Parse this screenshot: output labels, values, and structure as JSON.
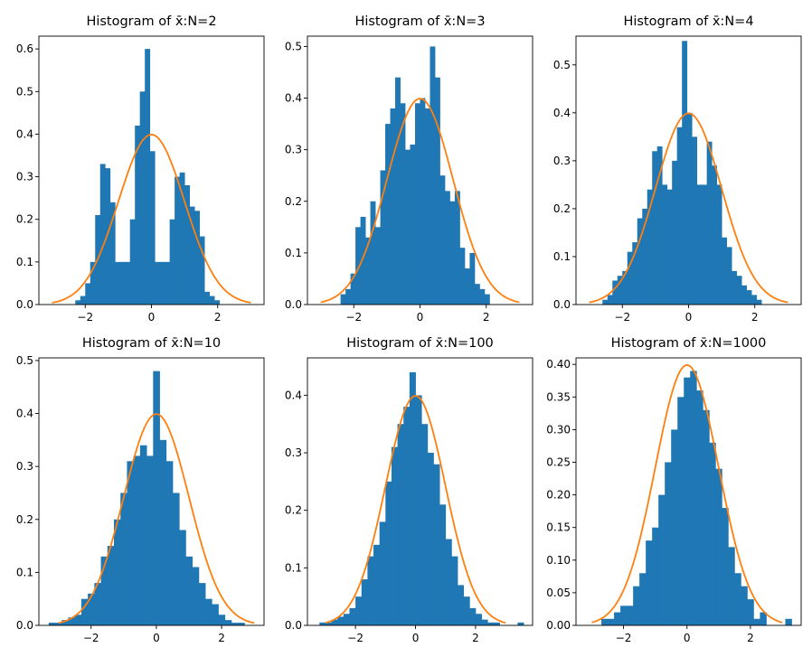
{
  "figure": {
    "background": "#ffffff",
    "bar_color": "#1f77b4",
    "curve_color": "#ff7f0e"
  },
  "chart_data": [
    {
      "type": "bar",
      "title": "Histogram of x̄:N=2",
      "xlabel": "",
      "ylabel": "",
      "xlim": [
        -3.4,
        3.4
      ],
      "ylim": [
        0,
        0.63
      ],
      "xticks": [
        -2,
        0,
        2
      ],
      "xtick_labels": [
        "−2",
        "0",
        "2"
      ],
      "yticks": [
        0,
        0.1,
        0.2,
        0.3,
        0.4,
        0.5,
        0.6
      ],
      "ytick_labels": [
        "0.0",
        "0.1",
        "0.2",
        "0.3",
        "0.4",
        "0.5",
        "0.6"
      ],
      "bin_edges": [
        -2.3,
        -2.15,
        -2.0,
        -1.85,
        -1.7,
        -1.55,
        -1.4,
        -1.25,
        -1.1,
        -0.95,
        -0.8,
        -0.65,
        -0.5,
        -0.35,
        -0.2,
        -0.05,
        0.1,
        0.25,
        0.4,
        0.55,
        0.7,
        0.85,
        1.0,
        1.15,
        1.3,
        1.45,
        1.6,
        1.75,
        1.9,
        2.05,
        2.2
      ],
      "values": [
        0.01,
        0.02,
        0.05,
        0.1,
        0.21,
        0.33,
        0.32,
        0.24,
        0.1,
        0.1,
        0.1,
        0.2,
        0.42,
        0.5,
        0.6,
        0.36,
        0.1,
        0.1,
        0.1,
        0.2,
        0.3,
        0.31,
        0.28,
        0.23,
        0.22,
        0.16,
        0.03,
        0.02,
        0.01,
        0.0
      ],
      "curve": {
        "type": "normal_pdf",
        "mean": 0,
        "std": 1,
        "x_range": [
          -3,
          3
        ]
      }
    },
    {
      "type": "bar",
      "title": "Histogram of x̄:N=3",
      "xlabel": "",
      "ylabel": "",
      "xlim": [
        -3.4,
        3.4
      ],
      "ylim": [
        0,
        0.52
      ],
      "xticks": [
        -2,
        0,
        2
      ],
      "xtick_labels": [
        "−2",
        "0",
        "2"
      ],
      "yticks": [
        0,
        0.1,
        0.2,
        0.3,
        0.4,
        0.5
      ],
      "ytick_labels": [
        "0.0",
        "0.1",
        "0.2",
        "0.3",
        "0.4",
        "0.5"
      ],
      "bin_edges": [
        -2.4,
        -2.25,
        -2.1,
        -1.95,
        -1.8,
        -1.65,
        -1.5,
        -1.35,
        -1.2,
        -1.05,
        -0.9,
        -0.75,
        -0.6,
        -0.45,
        -0.3,
        -0.15,
        0.0,
        0.15,
        0.3,
        0.45,
        0.6,
        0.75,
        0.9,
        1.05,
        1.2,
        1.35,
        1.5,
        1.65,
        1.8,
        1.95,
        2.1,
        2.25,
        2.4
      ],
      "values": [
        0.02,
        0.03,
        0.06,
        0.15,
        0.17,
        0.13,
        0.2,
        0.15,
        0.26,
        0.35,
        0.38,
        0.44,
        0.39,
        0.3,
        0.31,
        0.39,
        0.4,
        0.38,
        0.5,
        0.44,
        0.25,
        0.22,
        0.2,
        0.22,
        0.11,
        0.07,
        0.1,
        0.04,
        0.03,
        0.02,
        0.0,
        0.0
      ],
      "curve": {
        "type": "normal_pdf",
        "mean": 0,
        "std": 1,
        "x_range": [
          -3,
          3
        ]
      }
    },
    {
      "type": "bar",
      "title": "Histogram of x̄:N=4",
      "xlabel": "",
      "ylabel": "",
      "xlim": [
        -3.4,
        3.4
      ],
      "ylim": [
        0,
        0.56
      ],
      "xticks": [
        -2,
        0,
        2
      ],
      "xtick_labels": [
        "−2",
        "0",
        "2"
      ],
      "yticks": [
        0,
        0.1,
        0.2,
        0.3,
        0.4,
        0.5
      ],
      "ytick_labels": [
        "0.0",
        "0.1",
        "0.2",
        "0.3",
        "0.4",
        "0.5"
      ],
      "bin_edges": [
        -2.6,
        -2.45,
        -2.3,
        -2.15,
        -2.0,
        -1.85,
        -1.7,
        -1.55,
        -1.4,
        -1.25,
        -1.1,
        -0.95,
        -0.8,
        -0.65,
        -0.5,
        -0.35,
        -0.2,
        -0.05,
        0.1,
        0.25,
        0.4,
        0.55,
        0.7,
        0.85,
        1.0,
        1.15,
        1.3,
        1.45,
        1.6,
        1.75,
        1.9,
        2.05,
        2.2,
        2.35,
        2.5
      ],
      "values": [
        0.01,
        0.02,
        0.05,
        0.06,
        0.07,
        0.11,
        0.13,
        0.18,
        0.2,
        0.24,
        0.32,
        0.33,
        0.25,
        0.24,
        0.3,
        0.37,
        0.55,
        0.4,
        0.35,
        0.25,
        0.25,
        0.34,
        0.29,
        0.25,
        0.14,
        0.12,
        0.07,
        0.06,
        0.04,
        0.03,
        0.02,
        0.01,
        0.0,
        0.0
      ],
      "curve": {
        "type": "normal_pdf",
        "mean": 0,
        "std": 1,
        "x_range": [
          -3,
          3
        ]
      }
    },
    {
      "type": "bar",
      "title": "Histogram of x̄:N=10",
      "xlabel": "",
      "ylabel": "",
      "xlim": [
        -3.6,
        3.3
      ],
      "ylim": [
        0,
        0.505
      ],
      "xticks": [
        -2,
        0,
        2
      ],
      "xtick_labels": [
        "−2",
        "0",
        "2"
      ],
      "yticks": [
        0,
        0.1,
        0.2,
        0.3,
        0.4,
        0.5
      ],
      "ytick_labels": [
        "0.0",
        "0.1",
        "0.2",
        "0.3",
        "0.4",
        "0.5"
      ],
      "bin_edges": [
        -3.3,
        -3.1,
        -2.9,
        -2.7,
        -2.5,
        -2.3,
        -2.1,
        -1.9,
        -1.7,
        -1.5,
        -1.3,
        -1.1,
        -0.9,
        -0.7,
        -0.5,
        -0.3,
        -0.1,
        0.1,
        0.3,
        0.5,
        0.7,
        0.9,
        1.1,
        1.3,
        1.5,
        1.7,
        1.9,
        2.1,
        2.3,
        2.5,
        2.7,
        2.9
      ],
      "values": [
        0.005,
        0.005,
        0.01,
        0.015,
        0.02,
        0.05,
        0.06,
        0.08,
        0.13,
        0.15,
        0.2,
        0.25,
        0.31,
        0.32,
        0.34,
        0.32,
        0.48,
        0.35,
        0.31,
        0.25,
        0.18,
        0.13,
        0.11,
        0.08,
        0.05,
        0.04,
        0.02,
        0.01,
        0.005,
        0.005,
        0.0
      ],
      "curve": {
        "type": "normal_pdf",
        "mean": 0,
        "std": 1,
        "x_range": [
          -3,
          3
        ]
      }
    },
    {
      "type": "bar",
      "title": "Histogram of x̄:N=100",
      "xlabel": "",
      "ylabel": "",
      "xlim": [
        -3.6,
        3.9
      ],
      "ylim": [
        0,
        0.465
      ],
      "xticks": [
        -2,
        0,
        2
      ],
      "xtick_labels": [
        "−2",
        "0",
        "2"
      ],
      "yticks": [
        0,
        0.1,
        0.2,
        0.3,
        0.4
      ],
      "ytick_labels": [
        "0.0",
        "0.1",
        "0.2",
        "0.3",
        "0.4"
      ],
      "bin_edges": [
        -3.2,
        -3.0,
        -2.8,
        -2.6,
        -2.4,
        -2.2,
        -2.0,
        -1.8,
        -1.6,
        -1.4,
        -1.2,
        -1.0,
        -0.8,
        -0.6,
        -0.4,
        -0.2,
        0.0,
        0.2,
        0.4,
        0.6,
        0.8,
        1.0,
        1.2,
        1.4,
        1.6,
        1.8,
        2.0,
        2.2,
        2.4,
        2.6,
        2.8,
        3.0,
        3.2,
        3.4,
        3.6
      ],
      "values": [
        0.005,
        0.005,
        0.01,
        0.015,
        0.02,
        0.03,
        0.05,
        0.08,
        0.12,
        0.14,
        0.18,
        0.25,
        0.31,
        0.35,
        0.38,
        0.44,
        0.4,
        0.35,
        0.3,
        0.28,
        0.21,
        0.15,
        0.12,
        0.07,
        0.05,
        0.03,
        0.02,
        0.01,
        0.005,
        0.005,
        0.0,
        0.0,
        0.0,
        0.005
      ],
      "curve": {
        "type": "normal_pdf",
        "mean": 0,
        "std": 1,
        "x_range": [
          -3,
          3
        ]
      }
    },
    {
      "type": "bar",
      "title": "Histogram of x̄:N=1000",
      "xlabel": "",
      "ylabel": "",
      "xlim": [
        -3.5,
        3.6
      ],
      "ylim": [
        0,
        0.41
      ],
      "xticks": [
        -2,
        0,
        2
      ],
      "xtick_labels": [
        "−2",
        "0",
        "2"
      ],
      "yticks": [
        0,
        0.05,
        0.1,
        0.15,
        0.2,
        0.25,
        0.3,
        0.35,
        0.4
      ],
      "ytick_labels": [
        "0.00",
        "0.05",
        "0.10",
        "0.15",
        "0.20",
        "0.25",
        "0.30",
        "0.35",
        "0.40"
      ],
      "bin_edges": [
        -2.7,
        -2.5,
        -2.3,
        -2.1,
        -1.9,
        -1.7,
        -1.5,
        -1.3,
        -1.1,
        -0.9,
        -0.7,
        -0.5,
        -0.3,
        -0.1,
        0.1,
        0.3,
        0.5,
        0.7,
        0.9,
        1.1,
        1.3,
        1.5,
        1.7,
        1.9,
        2.1,
        2.3,
        2.5,
        2.7,
        2.9,
        3.1,
        3.3
      ],
      "values": [
        0.01,
        0.01,
        0.02,
        0.03,
        0.03,
        0.06,
        0.08,
        0.13,
        0.15,
        0.2,
        0.25,
        0.3,
        0.35,
        0.38,
        0.39,
        0.36,
        0.33,
        0.28,
        0.24,
        0.18,
        0.12,
        0.08,
        0.06,
        0.04,
        0.01,
        0.02,
        0.0,
        0.0,
        0.0,
        0.01
      ],
      "curve": {
        "type": "normal_pdf",
        "mean": 0,
        "std": 1,
        "x_range": [
          -3,
          3
        ]
      }
    }
  ]
}
